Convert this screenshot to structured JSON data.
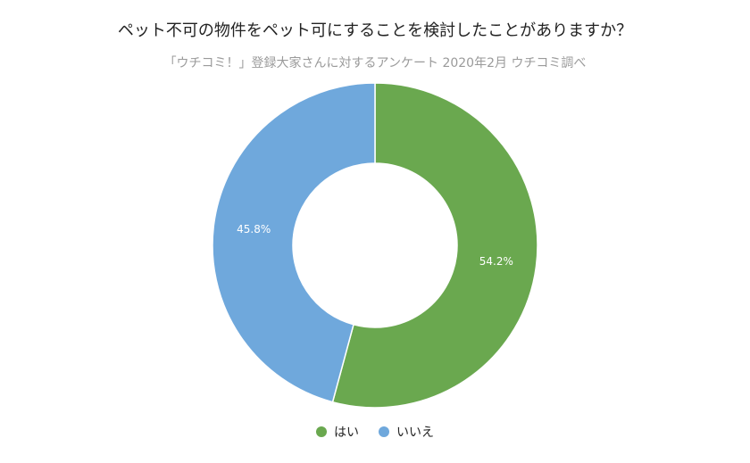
{
  "chart_data": {
    "type": "pie",
    "title": "ペット不可の物件をペット可にすることを検討したことがありますか？",
    "subtitle": "「ウチコミ！」登録大家さんに対するアンケート 2020年2月 ウチコミ調べ",
    "categories": [
      "はい",
      "いいえ"
    ],
    "values": [
      54.2,
      45.8
    ],
    "value_labels": [
      "54.2%",
      "45.8%"
    ],
    "colors": [
      "#6aa84f",
      "#6fa8dc"
    ],
    "donut": true,
    "legend_position": "bottom"
  }
}
